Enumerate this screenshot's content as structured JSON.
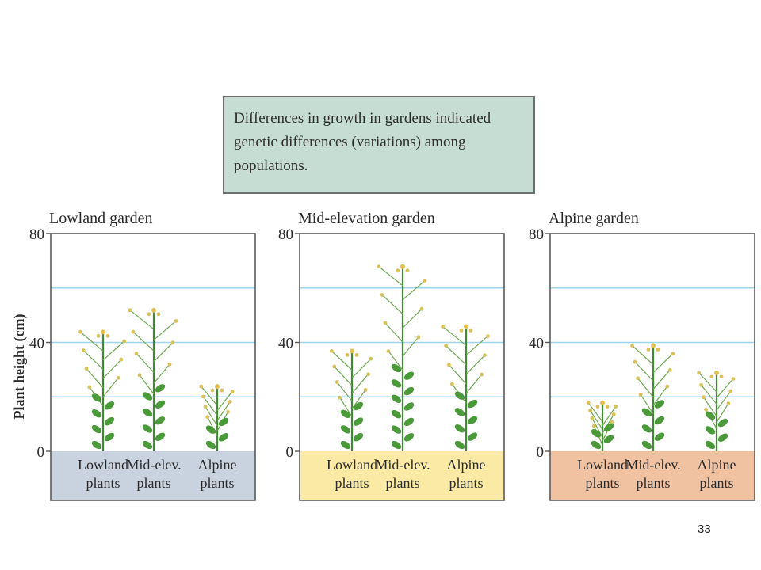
{
  "callout": {
    "text": "Differences in growth in gardens indicated genetic differences (variations) among populations."
  },
  "slide_number": "33",
  "chart_data": {
    "type": "bar",
    "ylabel": "Plant height (cm)",
    "ylim": [
      0,
      80
    ],
    "yticks": [
      0,
      40,
      80
    ],
    "gridlines": [
      20,
      40,
      60
    ],
    "categories": [
      [
        "Lowland",
        "plants"
      ],
      [
        "Mid-elev.",
        "plants"
      ],
      [
        "Alpine",
        "plants"
      ]
    ],
    "panels": [
      {
        "title": "Lowland garden",
        "base_color": "#c9d3df",
        "values": [
          45,
          53,
          25
        ]
      },
      {
        "title": "Mid-elevation garden",
        "base_color": "#fbe9a6",
        "values": [
          38,
          69,
          47
        ]
      },
      {
        "title": "Alpine garden",
        "base_color": "#f0c2a2",
        "values": [
          19,
          40,
          30
        ]
      }
    ]
  }
}
